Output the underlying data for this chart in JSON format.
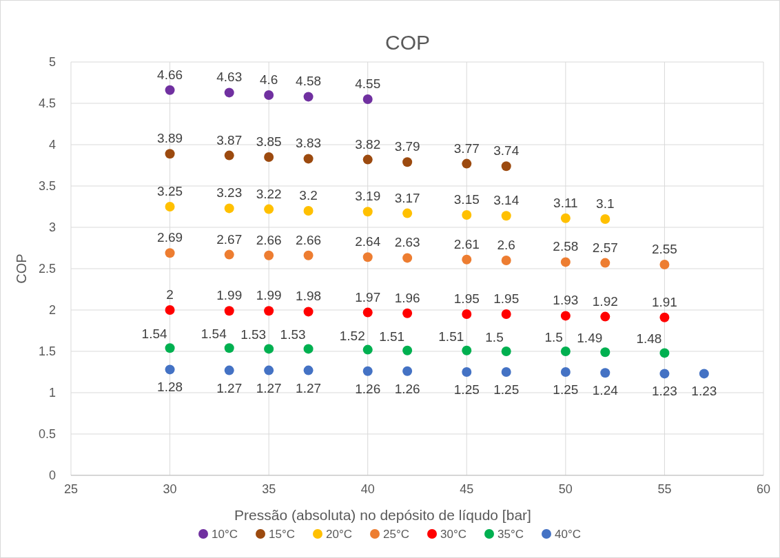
{
  "chart_data": {
    "type": "scatter",
    "title": "COP",
    "xlabel": "Pressão (absoluta) no depósito de líqudo [bar]",
    "ylabel": "COP",
    "xlim": [
      25,
      60
    ],
    "xticks": [
      25,
      30,
      35,
      40,
      45,
      50,
      55,
      60
    ],
    "ylim": [
      0,
      5
    ],
    "yticks": [
      0,
      0.5,
      1,
      1.5,
      2,
      2.5,
      3,
      3.5,
      4,
      4.5,
      5
    ],
    "grid": true,
    "legend": "bottom",
    "marker": "circle",
    "data_labels": true,
    "series": [
      {
        "name": "10°C",
        "color": "#7030a0",
        "x": [
          30,
          33,
          35,
          37,
          40
        ],
        "values": [
          4.66,
          4.63,
          4.6,
          4.58,
          4.55
        ]
      },
      {
        "name": "15°C",
        "color": "#9c4a0f",
        "x": [
          30,
          33,
          35,
          37,
          40,
          42,
          45,
          47
        ],
        "values": [
          3.89,
          3.87,
          3.85,
          3.83,
          3.82,
          3.79,
          3.77,
          3.74
        ]
      },
      {
        "name": "20°C",
        "color": "#ffc000",
        "x": [
          30,
          33,
          35,
          37,
          40,
          42,
          45,
          47,
          50,
          52
        ],
        "values": [
          3.25,
          3.23,
          3.22,
          3.2,
          3.19,
          3.17,
          3.15,
          3.14,
          3.11,
          3.1
        ]
      },
      {
        "name": "25°C",
        "color": "#ed7d31",
        "x": [
          30,
          33,
          35,
          37,
          40,
          42,
          45,
          47,
          50,
          52,
          55
        ],
        "values": [
          2.69,
          2.67,
          2.66,
          2.66,
          2.64,
          2.63,
          2.61,
          2.6,
          2.58,
          2.57,
          2.55
        ]
      },
      {
        "name": "30°C",
        "color": "#ff0000",
        "x": [
          30,
          33,
          35,
          37,
          40,
          42,
          45,
          47,
          50,
          52,
          55
        ],
        "values": [
          2,
          1.99,
          1.99,
          1.98,
          1.97,
          1.96,
          1.95,
          1.95,
          1.93,
          1.92,
          1.91
        ]
      },
      {
        "name": "35°C",
        "color": "#00b050",
        "x": [
          30,
          33,
          35,
          37,
          40,
          42,
          45,
          47,
          50,
          52,
          55
        ],
        "values": [
          1.54,
          1.54,
          1.53,
          1.53,
          1.52,
          1.51,
          1.51,
          1.5,
          1.5,
          1.49,
          1.48
        ]
      },
      {
        "name": "40°C",
        "color": "#4472c4",
        "x": [
          30,
          33,
          35,
          37,
          40,
          42,
          45,
          47,
          50,
          52,
          55,
          57
        ],
        "values": [
          1.28,
          1.27,
          1.27,
          1.27,
          1.26,
          1.26,
          1.25,
          1.25,
          1.25,
          1.24,
          1.23,
          1.23
        ]
      }
    ]
  }
}
